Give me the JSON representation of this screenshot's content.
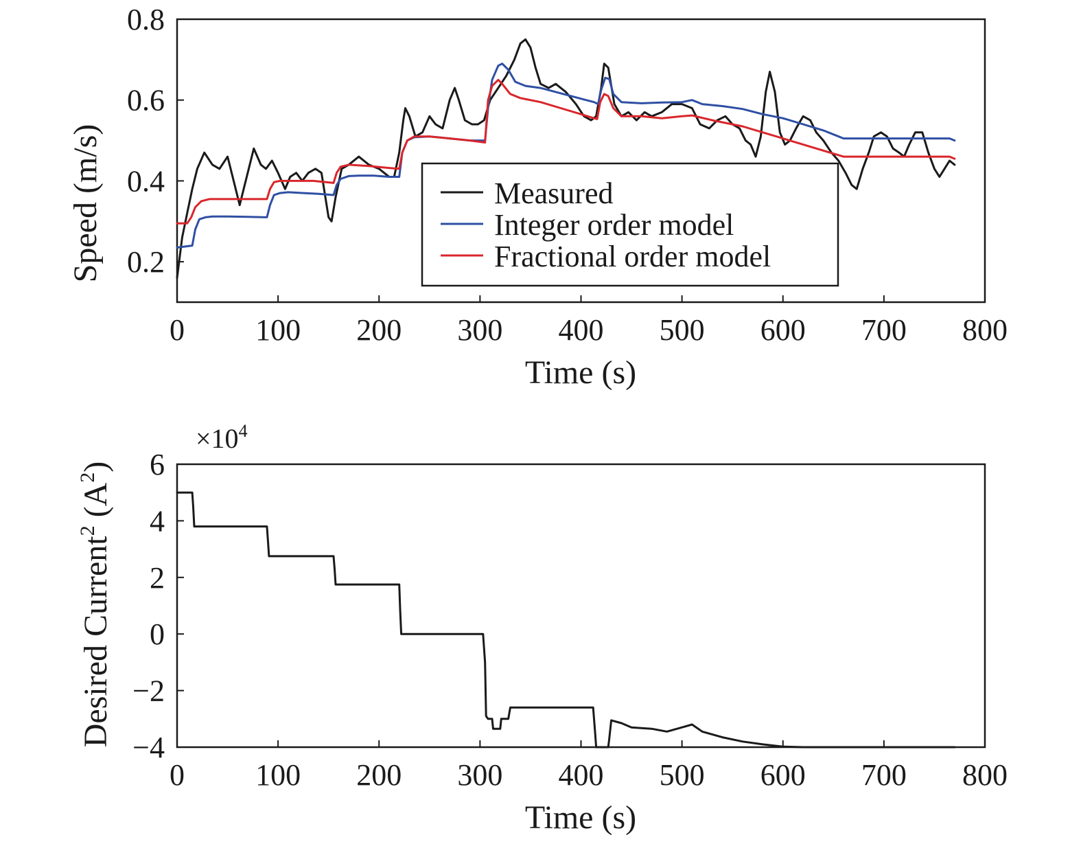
{
  "chart_data": [
    {
      "type": "line",
      "xlabel": "Time (s)",
      "ylabel": "Speed (m/s)",
      "xlim": [
        0,
        800
      ],
      "ylim": [
        0.1,
        0.8
      ],
      "xticks": [
        "0",
        "100",
        "200",
        "300",
        "400",
        "500",
        "600",
        "700",
        "800"
      ],
      "yticks": [
        "0.2",
        "0.4",
        "0.6",
        "0.8"
      ],
      "legend_position": "center-right, inside plot",
      "grid": false,
      "series": [
        {
          "name": "Measured",
          "color": "#1a1a1a",
          "x": [
            0,
            5,
            10,
            15,
            20,
            27,
            35,
            42,
            50,
            57,
            62,
            68,
            76,
            83,
            88,
            94,
            100,
            107,
            112,
            118,
            124,
            130,
            137,
            143,
            150,
            153,
            157,
            163,
            170,
            180,
            190,
            200,
            210,
            215,
            220,
            224,
            226,
            230,
            236,
            243,
            250,
            256,
            263,
            270,
            275,
            279,
            285,
            292,
            298,
            304,
            310,
            318,
            326,
            334,
            340,
            345,
            350,
            355,
            360,
            368,
            375,
            385,
            395,
            403,
            410,
            415,
            420,
            423,
            427,
            433,
            440,
            447,
            455,
            463,
            470,
            480,
            490,
            500,
            510,
            518,
            527,
            535,
            543,
            550,
            557,
            563,
            568,
            573,
            578,
            583,
            587,
            592,
            597,
            602,
            607,
            613,
            620,
            627,
            633,
            640,
            648,
            655,
            662,
            668,
            673,
            679,
            685,
            690,
            697,
            703,
            709,
            715,
            720,
            725,
            731,
            738,
            744,
            750,
            755,
            760,
            765,
            770
          ],
          "y": [
            0.16,
            0.26,
            0.32,
            0.38,
            0.43,
            0.47,
            0.44,
            0.43,
            0.46,
            0.39,
            0.34,
            0.4,
            0.48,
            0.44,
            0.43,
            0.45,
            0.42,
            0.38,
            0.41,
            0.42,
            0.4,
            0.42,
            0.43,
            0.42,
            0.31,
            0.3,
            0.36,
            0.43,
            0.44,
            0.46,
            0.44,
            0.43,
            0.41,
            0.41,
            0.47,
            0.55,
            0.58,
            0.56,
            0.51,
            0.52,
            0.56,
            0.54,
            0.53,
            0.6,
            0.63,
            0.6,
            0.55,
            0.54,
            0.54,
            0.55,
            0.6,
            0.63,
            0.66,
            0.7,
            0.74,
            0.75,
            0.73,
            0.68,
            0.64,
            0.63,
            0.64,
            0.62,
            0.59,
            0.56,
            0.55,
            0.56,
            0.63,
            0.69,
            0.68,
            0.59,
            0.56,
            0.57,
            0.55,
            0.57,
            0.56,
            0.57,
            0.59,
            0.59,
            0.58,
            0.54,
            0.53,
            0.55,
            0.56,
            0.54,
            0.53,
            0.5,
            0.49,
            0.46,
            0.51,
            0.62,
            0.67,
            0.62,
            0.52,
            0.49,
            0.5,
            0.53,
            0.56,
            0.55,
            0.52,
            0.5,
            0.47,
            0.45,
            0.42,
            0.39,
            0.38,
            0.43,
            0.47,
            0.51,
            0.52,
            0.51,
            0.48,
            0.47,
            0.46,
            0.49,
            0.52,
            0.52,
            0.47,
            0.43,
            0.41,
            0.43,
            0.45,
            0.44
          ]
        },
        {
          "name": "Integer order model",
          "color": "#2e4fa3",
          "x": [
            0,
            15,
            18,
            22,
            28,
            35,
            50,
            70,
            89,
            92,
            96,
            102,
            110,
            125,
            140,
            155,
            158,
            162,
            170,
            180,
            195,
            210,
            220,
            223,
            228,
            235,
            250,
            270,
            290,
            305,
            308,
            312,
            318,
            322,
            328,
            335,
            345,
            360,
            375,
            390,
            405,
            413,
            417,
            420,
            424,
            428,
            432,
            440,
            460,
            480,
            500,
            510,
            520,
            540,
            560,
            580,
            600,
            620,
            640,
            655,
            660,
            700,
            740,
            765,
            770
          ],
          "y": [
            0.235,
            0.24,
            0.28,
            0.305,
            0.31,
            0.312,
            0.312,
            0.311,
            0.31,
            0.34,
            0.365,
            0.37,
            0.372,
            0.37,
            0.368,
            0.365,
            0.39,
            0.405,
            0.412,
            0.413,
            0.413,
            0.41,
            0.41,
            0.47,
            0.5,
            0.508,
            0.51,
            0.505,
            0.5,
            0.5,
            0.58,
            0.65,
            0.685,
            0.69,
            0.675,
            0.645,
            0.635,
            0.63,
            0.62,
            0.61,
            0.6,
            0.595,
            0.59,
            0.625,
            0.655,
            0.652,
            0.615,
            0.595,
            0.592,
            0.594,
            0.595,
            0.6,
            0.59,
            0.585,
            0.578,
            0.565,
            0.555,
            0.54,
            0.525,
            0.51,
            0.505,
            0.505,
            0.505,
            0.505,
            0.5
          ]
        },
        {
          "name": "Fractional order model",
          "color": "#d9262b",
          "x": [
            0,
            10,
            14,
            18,
            24,
            32,
            50,
            70,
            89,
            92,
            96,
            102,
            115,
            135,
            155,
            158,
            162,
            170,
            190,
            210,
            220,
            223,
            228,
            235,
            250,
            270,
            290,
            305,
            308,
            312,
            318,
            322,
            330,
            340,
            360,
            380,
            400,
            413,
            416,
            419,
            423,
            427,
            432,
            440,
            460,
            480,
            500,
            510,
            530,
            560,
            600,
            640,
            660,
            700,
            740,
            765,
            770
          ],
          "y": [
            0.295,
            0.295,
            0.31,
            0.335,
            0.35,
            0.355,
            0.355,
            0.355,
            0.355,
            0.38,
            0.397,
            0.4,
            0.4,
            0.4,
            0.395,
            0.42,
            0.435,
            0.44,
            0.437,
            0.432,
            0.43,
            0.47,
            0.5,
            0.51,
            0.51,
            0.505,
            0.5,
            0.495,
            0.6,
            0.635,
            0.65,
            0.64,
            0.615,
            0.605,
            0.595,
            0.58,
            0.565,
            0.555,
            0.553,
            0.595,
            0.615,
            0.61,
            0.58,
            0.56,
            0.56,
            0.555,
            0.56,
            0.562,
            0.55,
            0.535,
            0.505,
            0.475,
            0.46,
            0.46,
            0.46,
            0.46,
            0.455
          ]
        }
      ]
    },
    {
      "type": "line",
      "xlabel": "Time (s)",
      "ylabel_main": "Desired Current",
      "ylabel_sup": "2",
      "ylabel_unit_open": " (A",
      "ylabel_unit_close": ")",
      "multiplier_base": "×10",
      "multiplier_exp": "4",
      "xlim": [
        0,
        800
      ],
      "ylim": [
        -4,
        6
      ],
      "xticks": [
        "0",
        "100",
        "200",
        "300",
        "400",
        "500",
        "600",
        "700",
        "800"
      ],
      "yticks": [
        "−4",
        "−2",
        "0",
        "2",
        "4",
        "6"
      ],
      "grid": false,
      "series": [
        {
          "color": "#1a1a1a",
          "x": [
            0,
            15,
            16,
            17,
            89,
            90,
            91,
            155,
            156,
            157,
            220,
            221,
            222,
            303,
            305,
            306,
            308,
            312,
            313,
            320,
            321,
            325,
            328,
            329,
            330,
            412,
            414,
            415,
            427,
            428,
            430,
            440,
            450,
            470,
            485,
            490,
            500,
            510,
            520,
            540,
            560,
            580,
            600,
            620,
            660,
            700,
            760,
            770
          ],
          "y": [
            5.0,
            5.0,
            4.5,
            3.8,
            3.8,
            3.3,
            2.75,
            2.75,
            2.3,
            1.75,
            1.75,
            0.8,
            0.0,
            0.0,
            -1.0,
            -2.9,
            -3.0,
            -3.0,
            -3.35,
            -3.35,
            -3.0,
            -3.0,
            -3.0,
            -2.8,
            -2.6,
            -2.6,
            -3.5,
            -4.0,
            -4.0,
            -3.7,
            -3.05,
            -3.15,
            -3.3,
            -3.35,
            -3.45,
            -3.4,
            -3.3,
            -3.2,
            -3.45,
            -3.65,
            -3.8,
            -3.9,
            -3.98,
            -4.0,
            -4.0,
            -4.0,
            -4.0,
            -4.0
          ]
        }
      ]
    }
  ]
}
